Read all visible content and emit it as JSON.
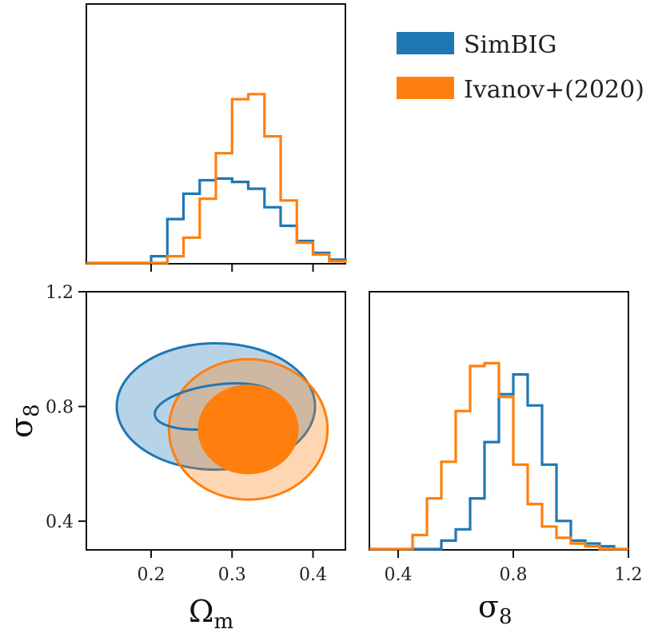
{
  "colors": {
    "simbig": "#1f77b4",
    "ivanov": "#ff7f0e",
    "frame": "#111111"
  },
  "legend": [
    {
      "label": "SimBIG",
      "color": "#1f77b4"
    },
    {
      "label": "Ivanov+(2020)",
      "color": "#ff7f0e"
    }
  ],
  "axes": {
    "omega_symbol": "Ω",
    "omega_sub": "m",
    "sigma_symbol": "σ",
    "sigma_sub": "8"
  },
  "chart_data": [
    {
      "type": "histogram",
      "panel": "omega_m marginal",
      "xlim": [
        0.12,
        0.44
      ],
      "xticks": [
        0.2,
        0.3,
        0.4
      ],
      "bin_edges": [
        0.12,
        0.16,
        0.2,
        0.22,
        0.24,
        0.26,
        0.28,
        0.3,
        0.32,
        0.34,
        0.36,
        0.38,
        0.4,
        0.42,
        0.44
      ],
      "series": [
        {
          "name": "SimBIG",
          "counts": [
            0.0,
            0.0,
            0.04,
            0.26,
            0.41,
            0.49,
            0.5,
            0.48,
            0.44,
            0.33,
            0.22,
            0.13,
            0.06,
            0.02
          ]
        },
        {
          "name": "Ivanov+(2020)",
          "counts": [
            0.0,
            0.0,
            0.0,
            0.04,
            0.15,
            0.38,
            0.65,
            0.97,
            1.0,
            0.75,
            0.37,
            0.12,
            0.05,
            0.01
          ]
        }
      ]
    },
    {
      "type": "contour",
      "panel": "omega_m vs sigma_8",
      "xlim": [
        0.12,
        0.44
      ],
      "ylim": [
        0.3,
        1.2
      ],
      "xticks": [
        0.2,
        0.3,
        0.4
      ],
      "yticks": [
        0.4,
        0.8,
        1.2
      ],
      "series": [
        {
          "name": "SimBIG",
          "center": [
            0.28,
            0.8
          ],
          "sigma": [
            0.05,
            0.09
          ],
          "levels": [
            "68%",
            "95%"
          ]
        },
        {
          "name": "Ivanov+(2020)",
          "center": [
            0.32,
            0.72
          ],
          "sigma": [
            0.04,
            0.1
          ],
          "levels": [
            "68%",
            "95%"
          ]
        }
      ]
    },
    {
      "type": "histogram",
      "panel": "sigma_8 marginal",
      "xlim": [
        0.3,
        1.2
      ],
      "xticks": [
        0.4,
        0.8,
        1.2
      ],
      "bin_edges": [
        0.3,
        0.35,
        0.4,
        0.45,
        0.5,
        0.55,
        0.6,
        0.65,
        0.7,
        0.75,
        0.8,
        0.85,
        0.9,
        0.95,
        1.0,
        1.05,
        1.1,
        1.15,
        1.2
      ],
      "series": [
        {
          "name": "SimBIG",
          "counts": [
            0.0,
            0.0,
            0.0,
            0.0,
            0.0,
            0.03,
            0.07,
            0.18,
            0.38,
            0.55,
            0.62,
            0.51,
            0.3,
            0.1,
            0.03,
            0.02,
            0.01,
            0.0
          ]
        },
        {
          "name": "Ivanov+(2020)",
          "counts": [
            0.0,
            0.0,
            0.0,
            0.05,
            0.18,
            0.31,
            0.49,
            0.65,
            0.66,
            0.54,
            0.3,
            0.16,
            0.08,
            0.04,
            0.02,
            0.01,
            0.0,
            0.0
          ]
        }
      ]
    }
  ]
}
